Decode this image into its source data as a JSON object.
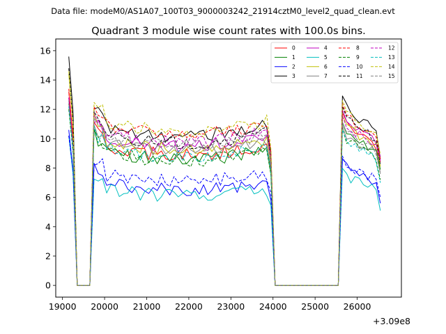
{
  "chart_data": {
    "type": "line",
    "suptitle": "Data file: modeM0/AS1A07_100T03_9000003242_21914cztM0_level2_quad_clean.evt",
    "title": "Quadrant 3 module wise count rates with 100.0s bins.",
    "xlabel": "",
    "ylabel": "",
    "x_offset_label": "+3.09e8",
    "xlim": [
      18840,
      27050
    ],
    "ylim": [
      -0.8,
      16.8
    ],
    "xticks": [
      19000,
      20000,
      21000,
      22000,
      23000,
      24000,
      25000,
      26000
    ],
    "yticks": [
      0,
      2,
      4,
      6,
      8,
      10,
      12,
      14,
      16
    ],
    "legend_position": "top-right",
    "segments": [
      {
        "x_start": 19150,
        "x_end": 19350,
        "step": 100
      },
      {
        "x_start": 19450,
        "x_end": 19650,
        "step": 100
      },
      {
        "x_start": 19750,
        "x_end": 23950,
        "step": 100
      },
      {
        "x_start": 24050,
        "x_end": 25550,
        "step": 100
      },
      {
        "x_start": 25650,
        "x_end": 26550,
        "step": 100
      }
    ],
    "series": [
      {
        "name": "0",
        "color": "#ff0000",
        "dash": false,
        "levels": {
          "start": 13.2,
          "plateau": 9.0,
          "end": 11.2,
          "final": 8.4
        }
      },
      {
        "name": "1",
        "color": "#008000",
        "dash": false,
        "levels": {
          "start": 12.4,
          "plateau": 8.7,
          "end": 10.6,
          "final": 7.9
        }
      },
      {
        "name": "2",
        "color": "#0000ff",
        "dash": false,
        "levels": {
          "start": 10.6,
          "plateau": 6.6,
          "end": 8.2,
          "final": 5.6
        }
      },
      {
        "name": "3",
        "color": "#000000",
        "dash": false,
        "levels": {
          "start": 15.6,
          "plateau": 10.3,
          "end": 12.3,
          "final": 8.6
        }
      },
      {
        "name": "4",
        "color": "#bf00bf",
        "dash": false,
        "levels": {
          "start": 12.8,
          "plateau": 9.6,
          "end": 11.4,
          "final": 8.8
        }
      },
      {
        "name": "5",
        "color": "#00bfbf",
        "dash": false,
        "levels": {
          "start": 10.2,
          "plateau": 6.2,
          "end": 7.6,
          "final": 5.1
        }
      },
      {
        "name": "6",
        "color": "#bfbf00",
        "dash": false,
        "levels": {
          "start": 14.4,
          "plateau": 9.4,
          "end": 11.0,
          "final": 8.1
        }
      },
      {
        "name": "7",
        "color": "#808080",
        "dash": false,
        "levels": {
          "start": 12.6,
          "plateau": 9.2,
          "end": 10.4,
          "final": 7.6
        }
      },
      {
        "name": "8",
        "color": "#ff0000",
        "dash": true,
        "levels": {
          "start": 13.4,
          "plateau": 10.4,
          "end": 11.8,
          "final": 8.6
        }
      },
      {
        "name": "9",
        "color": "#008000",
        "dash": true,
        "levels": {
          "start": 12.0,
          "plateau": 8.6,
          "end": 10.2,
          "final": 7.2
        }
      },
      {
        "name": "10",
        "color": "#0000ff",
        "dash": true,
        "levels": {
          "start": 10.2,
          "plateau": 7.2,
          "end": 8.4,
          "final": 6.0
        }
      },
      {
        "name": "11",
        "color": "#000000",
        "dash": true,
        "levels": {
          "start": 14.8,
          "plateau": 9.8,
          "end": 11.6,
          "final": 8.2
        }
      },
      {
        "name": "12",
        "color": "#bf00bf",
        "dash": true,
        "levels": {
          "start": 12.8,
          "plateau": 9.9,
          "end": 11.0,
          "final": 8.5
        }
      },
      {
        "name": "13",
        "color": "#00bfbf",
        "dash": true,
        "levels": {
          "start": 12.2,
          "plateau": 8.9,
          "end": 10.1,
          "final": 7.0
        }
      },
      {
        "name": "14",
        "color": "#bfbf00",
        "dash": true,
        "levels": {
          "start": 14.6,
          "plateau": 10.6,
          "end": 12.0,
          "final": 8.9
        }
      },
      {
        "name": "15",
        "color": "#808080",
        "dash": true,
        "levels": {
          "start": 12.4,
          "plateau": 9.6,
          "end": 10.6,
          "final": 7.7
        }
      }
    ]
  }
}
